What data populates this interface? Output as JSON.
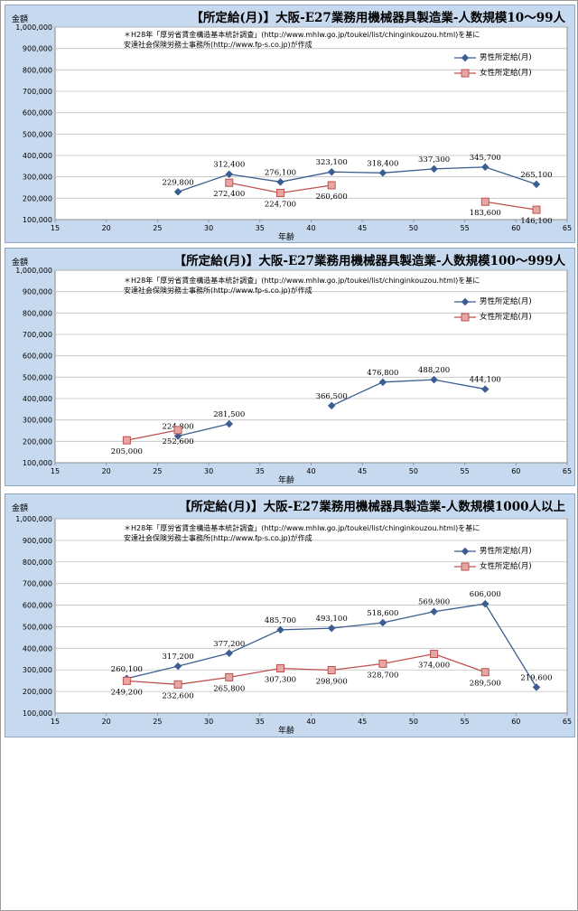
{
  "colors": {
    "male": "#3b5d91",
    "female": "#c0504d",
    "female_fill": "#e6a6a4",
    "plot_bg": "#ffffff",
    "panel_bg": "#c7d9ee"
  },
  "note_line1": "＊H28年「厚労省賃金構造基本統計調査」(http://www.mhlw.go.jp/toukei/list/chinginkouzou.html)を基に",
  "note_line2": "安達社会保険労務士事務所(http://www.fp-s.co.jp)が作成",
  "legend": {
    "male": "男性所定給(月)",
    "female": "女性所定給(月)"
  },
  "chart_data": [
    {
      "type": "line",
      "title": "【所定給(月)】大阪-E27業務用機械器具製造業-人数規模10～99人",
      "xlabel": "年齢",
      "ylabel": "金額",
      "xlim": [
        15,
        65
      ],
      "ylim": [
        100000,
        1000000
      ],
      "xticks": [
        "15",
        "20",
        "25",
        "30",
        "35",
        "40",
        "45",
        "50",
        "55",
        "60",
        "65"
      ],
      "yticks": [
        "100,000",
        "200,000",
        "300,000",
        "400,000",
        "500,000",
        "600,000",
        "700,000",
        "800,000",
        "900,000",
        "1,000,000"
      ],
      "grid": "horizontal",
      "legend_position": "top-right",
      "series": [
        {
          "name": "男性所定給(月)",
          "segments": [
            [
              {
                "x": 27,
                "y": 229800,
                "label": "229,800",
                "pos": "above"
              },
              {
                "x": 32,
                "y": 312400,
                "label": "312,400",
                "pos": "above"
              },
              {
                "x": 37,
                "y": 276100,
                "label": "276,100",
                "pos": "above"
              },
              {
                "x": 42,
                "y": 323100,
                "label": "323,100",
                "pos": "above"
              },
              {
                "x": 47,
                "y": 318400,
                "label": "318,400",
                "pos": "above"
              },
              {
                "x": 52,
                "y": 337300,
                "label": "337,300",
                "pos": "above"
              },
              {
                "x": 57,
                "y": 345700,
                "label": "345,700",
                "pos": "above"
              },
              {
                "x": 62,
                "y": 265100,
                "label": "265,100",
                "pos": "above"
              }
            ]
          ]
        },
        {
          "name": "女性所定給(月)",
          "segments": [
            [
              {
                "x": 32,
                "y": 272400,
                "label": "272,400",
                "pos": "below"
              },
              {
                "x": 37,
                "y": 224700,
                "label": "224,700",
                "pos": "below"
              },
              {
                "x": 42,
                "y": 260600,
                "label": "260,600",
                "pos": "below"
              }
            ],
            [
              {
                "x": 57,
                "y": 183600,
                "label": "183,600",
                "pos": "below"
              },
              {
                "x": 62,
                "y": 146100,
                "label": "146,100",
                "pos": "below"
              }
            ]
          ]
        }
      ]
    },
    {
      "type": "line",
      "title": "【所定給(月)】大阪-E27業務用機械器具製造業-人数規模100～999人",
      "xlabel": "年齢",
      "ylabel": "金額",
      "xlim": [
        15,
        65
      ],
      "ylim": [
        100000,
        1000000
      ],
      "xticks": [
        "15",
        "20",
        "25",
        "30",
        "35",
        "40",
        "45",
        "50",
        "55",
        "60",
        "65"
      ],
      "yticks": [
        "100,000",
        "200,000",
        "300,000",
        "400,000",
        "500,000",
        "600,000",
        "700,000",
        "800,000",
        "900,000",
        "1,000,000"
      ],
      "grid": "horizontal",
      "legend_position": "top-right",
      "series": [
        {
          "name": "男性所定給(月)",
          "segments": [
            [
              {
                "x": 27,
                "y": 224800,
                "label": "224,800",
                "pos": "above"
              },
              {
                "x": 32,
                "y": 281500,
                "label": "281,500",
                "pos": "above"
              }
            ],
            [
              {
                "x": 42,
                "y": 366500,
                "label": "366,500",
                "pos": "above"
              },
              {
                "x": 47,
                "y": 476800,
                "label": "476,800",
                "pos": "above"
              },
              {
                "x": 52,
                "y": 488200,
                "label": "488,200",
                "pos": "above"
              },
              {
                "x": 57,
                "y": 444100,
                "label": "444,100",
                "pos": "above"
              }
            ]
          ]
        },
        {
          "name": "女性所定給(月)",
          "segments": [
            [
              {
                "x": 22,
                "y": 205000,
                "label": "205,000",
                "pos": "below"
              },
              {
                "x": 27,
                "y": 252600,
                "label": "252,600",
                "pos": "below"
              }
            ]
          ]
        }
      ]
    },
    {
      "type": "line",
      "title": "【所定給(月)】大阪-E27業務用機械器具製造業-人数規模1000人以上",
      "xlabel": "年齢",
      "ylabel": "金額",
      "xlim": [
        15,
        65
      ],
      "ylim": [
        100000,
        1000000
      ],
      "xticks": [
        "15",
        "20",
        "25",
        "30",
        "35",
        "40",
        "45",
        "50",
        "55",
        "60",
        "65"
      ],
      "yticks": [
        "100,000",
        "200,000",
        "300,000",
        "400,000",
        "500,000",
        "600,000",
        "700,000",
        "800,000",
        "900,000",
        "1,000,000"
      ],
      "grid": "horizontal",
      "legend_position": "top-right",
      "series": [
        {
          "name": "男性所定給(月)",
          "segments": [
            [
              {
                "x": 22,
                "y": 260100,
                "label": "260,100",
                "pos": "above"
              },
              {
                "x": 27,
                "y": 317200,
                "label": "317,200",
                "pos": "above"
              },
              {
                "x": 32,
                "y": 377200,
                "label": "377,200",
                "pos": "above"
              },
              {
                "x": 37,
                "y": 485700,
                "label": "485,700",
                "pos": "above"
              },
              {
                "x": 42,
                "y": 493100,
                "label": "493,100",
                "pos": "above"
              },
              {
                "x": 47,
                "y": 518600,
                "label": "518,600",
                "pos": "above"
              },
              {
                "x": 52,
                "y": 569900,
                "label": "569,900",
                "pos": "above"
              },
              {
                "x": 57,
                "y": 606000,
                "label": "606,000",
                "pos": "above"
              },
              {
                "x": 62,
                "y": 219600,
                "label": "219,600",
                "pos": "above"
              }
            ]
          ]
        },
        {
          "name": "女性所定給(月)",
          "segments": [
            [
              {
                "x": 22,
                "y": 249200,
                "label": "249,200",
                "pos": "below"
              },
              {
                "x": 27,
                "y": 232600,
                "label": "232,600",
                "pos": "below"
              },
              {
                "x": 32,
                "y": 265800,
                "label": "265,800",
                "pos": "below"
              },
              {
                "x": 37,
                "y": 307300,
                "label": "307,300",
                "pos": "below"
              },
              {
                "x": 42,
                "y": 298900,
                "label": "298,900",
                "pos": "below"
              },
              {
                "x": 47,
                "y": 328700,
                "label": "328,700",
                "pos": "below"
              },
              {
                "x": 52,
                "y": 374000,
                "label": "374,000",
                "pos": "below"
              },
              {
                "x": 57,
                "y": 289500,
                "label": "289,500",
                "pos": "below"
              }
            ]
          ]
        }
      ]
    }
  ]
}
